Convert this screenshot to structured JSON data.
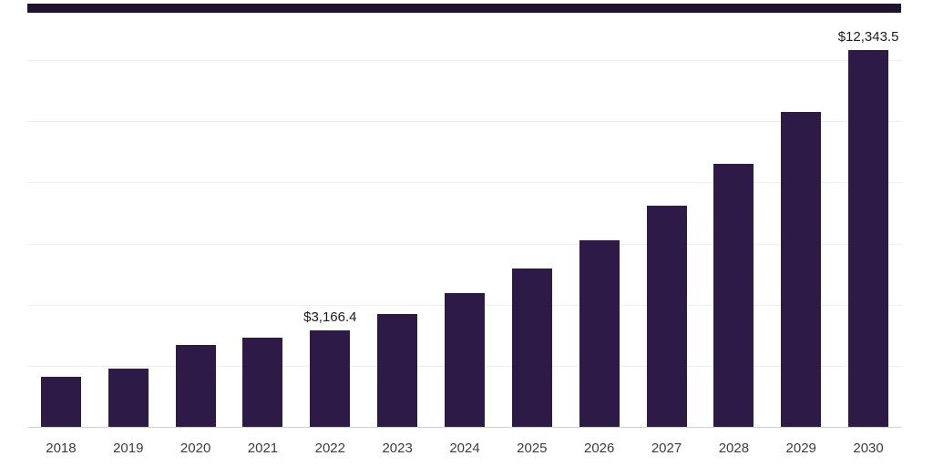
{
  "chart_data": {
    "type": "bar",
    "title": "",
    "xlabel": "",
    "ylabel": "",
    "categories": [
      "2018",
      "2019",
      "2020",
      "2021",
      "2022",
      "2023",
      "2024",
      "2025",
      "2026",
      "2027",
      "2028",
      "2029",
      "2030"
    ],
    "values": [
      1640,
      1905,
      2680,
      2920,
      3166.4,
      3700,
      4380,
      5180,
      6110,
      7240,
      8610,
      10310,
      12343.5
    ],
    "data_labels": [
      {
        "category": "2022",
        "text": "$3,166.4"
      },
      {
        "category": "2030",
        "text": "$12,343.5"
      }
    ],
    "ylim": [
      0,
      13700
    ],
    "gridline_values": [
      2000,
      4000,
      6000,
      8000,
      10000,
      12000
    ],
    "grid_on": true,
    "legend": "none",
    "bar_color": "#2e1a47",
    "top_strip_color": "#1f1430",
    "axis_line_color": "#cfcfd6",
    "gridline_color": "#eeeef2"
  }
}
